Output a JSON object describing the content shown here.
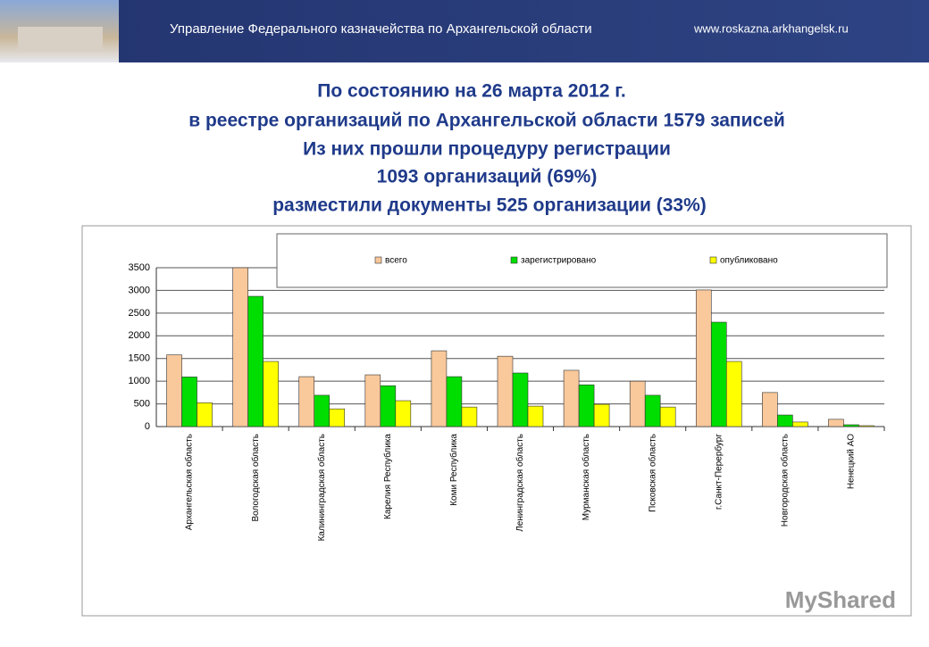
{
  "header": {
    "title": "Управление Федерального казначейства по Архангельской области",
    "url": "www.roskazna.arkhangelsk.ru"
  },
  "heading": [
    "По состоянию на 26 марта 2012 г.",
    "в реестре организаций по Архангельской области 1579 записей",
    "Из них прошли процедуру регистрации",
    "1093 организаций (69%)",
    "разместили документы 525 организации (33%)"
  ],
  "watermark": "MyShared",
  "chart_data": {
    "type": "bar",
    "categories": [
      "Архангельская область",
      "Вологодская область",
      "Калининградская область",
      "Карелия Республика",
      "Коми Республика",
      "Ленинградская область",
      "Мурманская область",
      "Псковская область",
      "г.Санкт-Перербург",
      "Новгородская область",
      "Ненецкий АО"
    ],
    "series": [
      {
        "name": "всего",
        "color": "#f9c89b",
        "values": [
          1579,
          3500,
          1100,
          1140,
          1670,
          1550,
          1240,
          1000,
          3010,
          750,
          160
        ]
      },
      {
        "name": "зарегистрировано",
        "color": "#00dd00",
        "values": [
          1093,
          2870,
          690,
          900,
          1100,
          1180,
          920,
          690,
          2300,
          255,
          40
        ]
      },
      {
        "name": "опубликовано",
        "color": "#ffff00",
        "values": [
          525,
          1435,
          390,
          570,
          430,
          450,
          490,
          430,
          1435,
          100,
          20
        ]
      }
    ],
    "ylim": [
      0,
      3500
    ],
    "yticks": [
      0,
      500,
      1000,
      1500,
      2000,
      2500,
      3000,
      3500
    ],
    "grid": true
  }
}
